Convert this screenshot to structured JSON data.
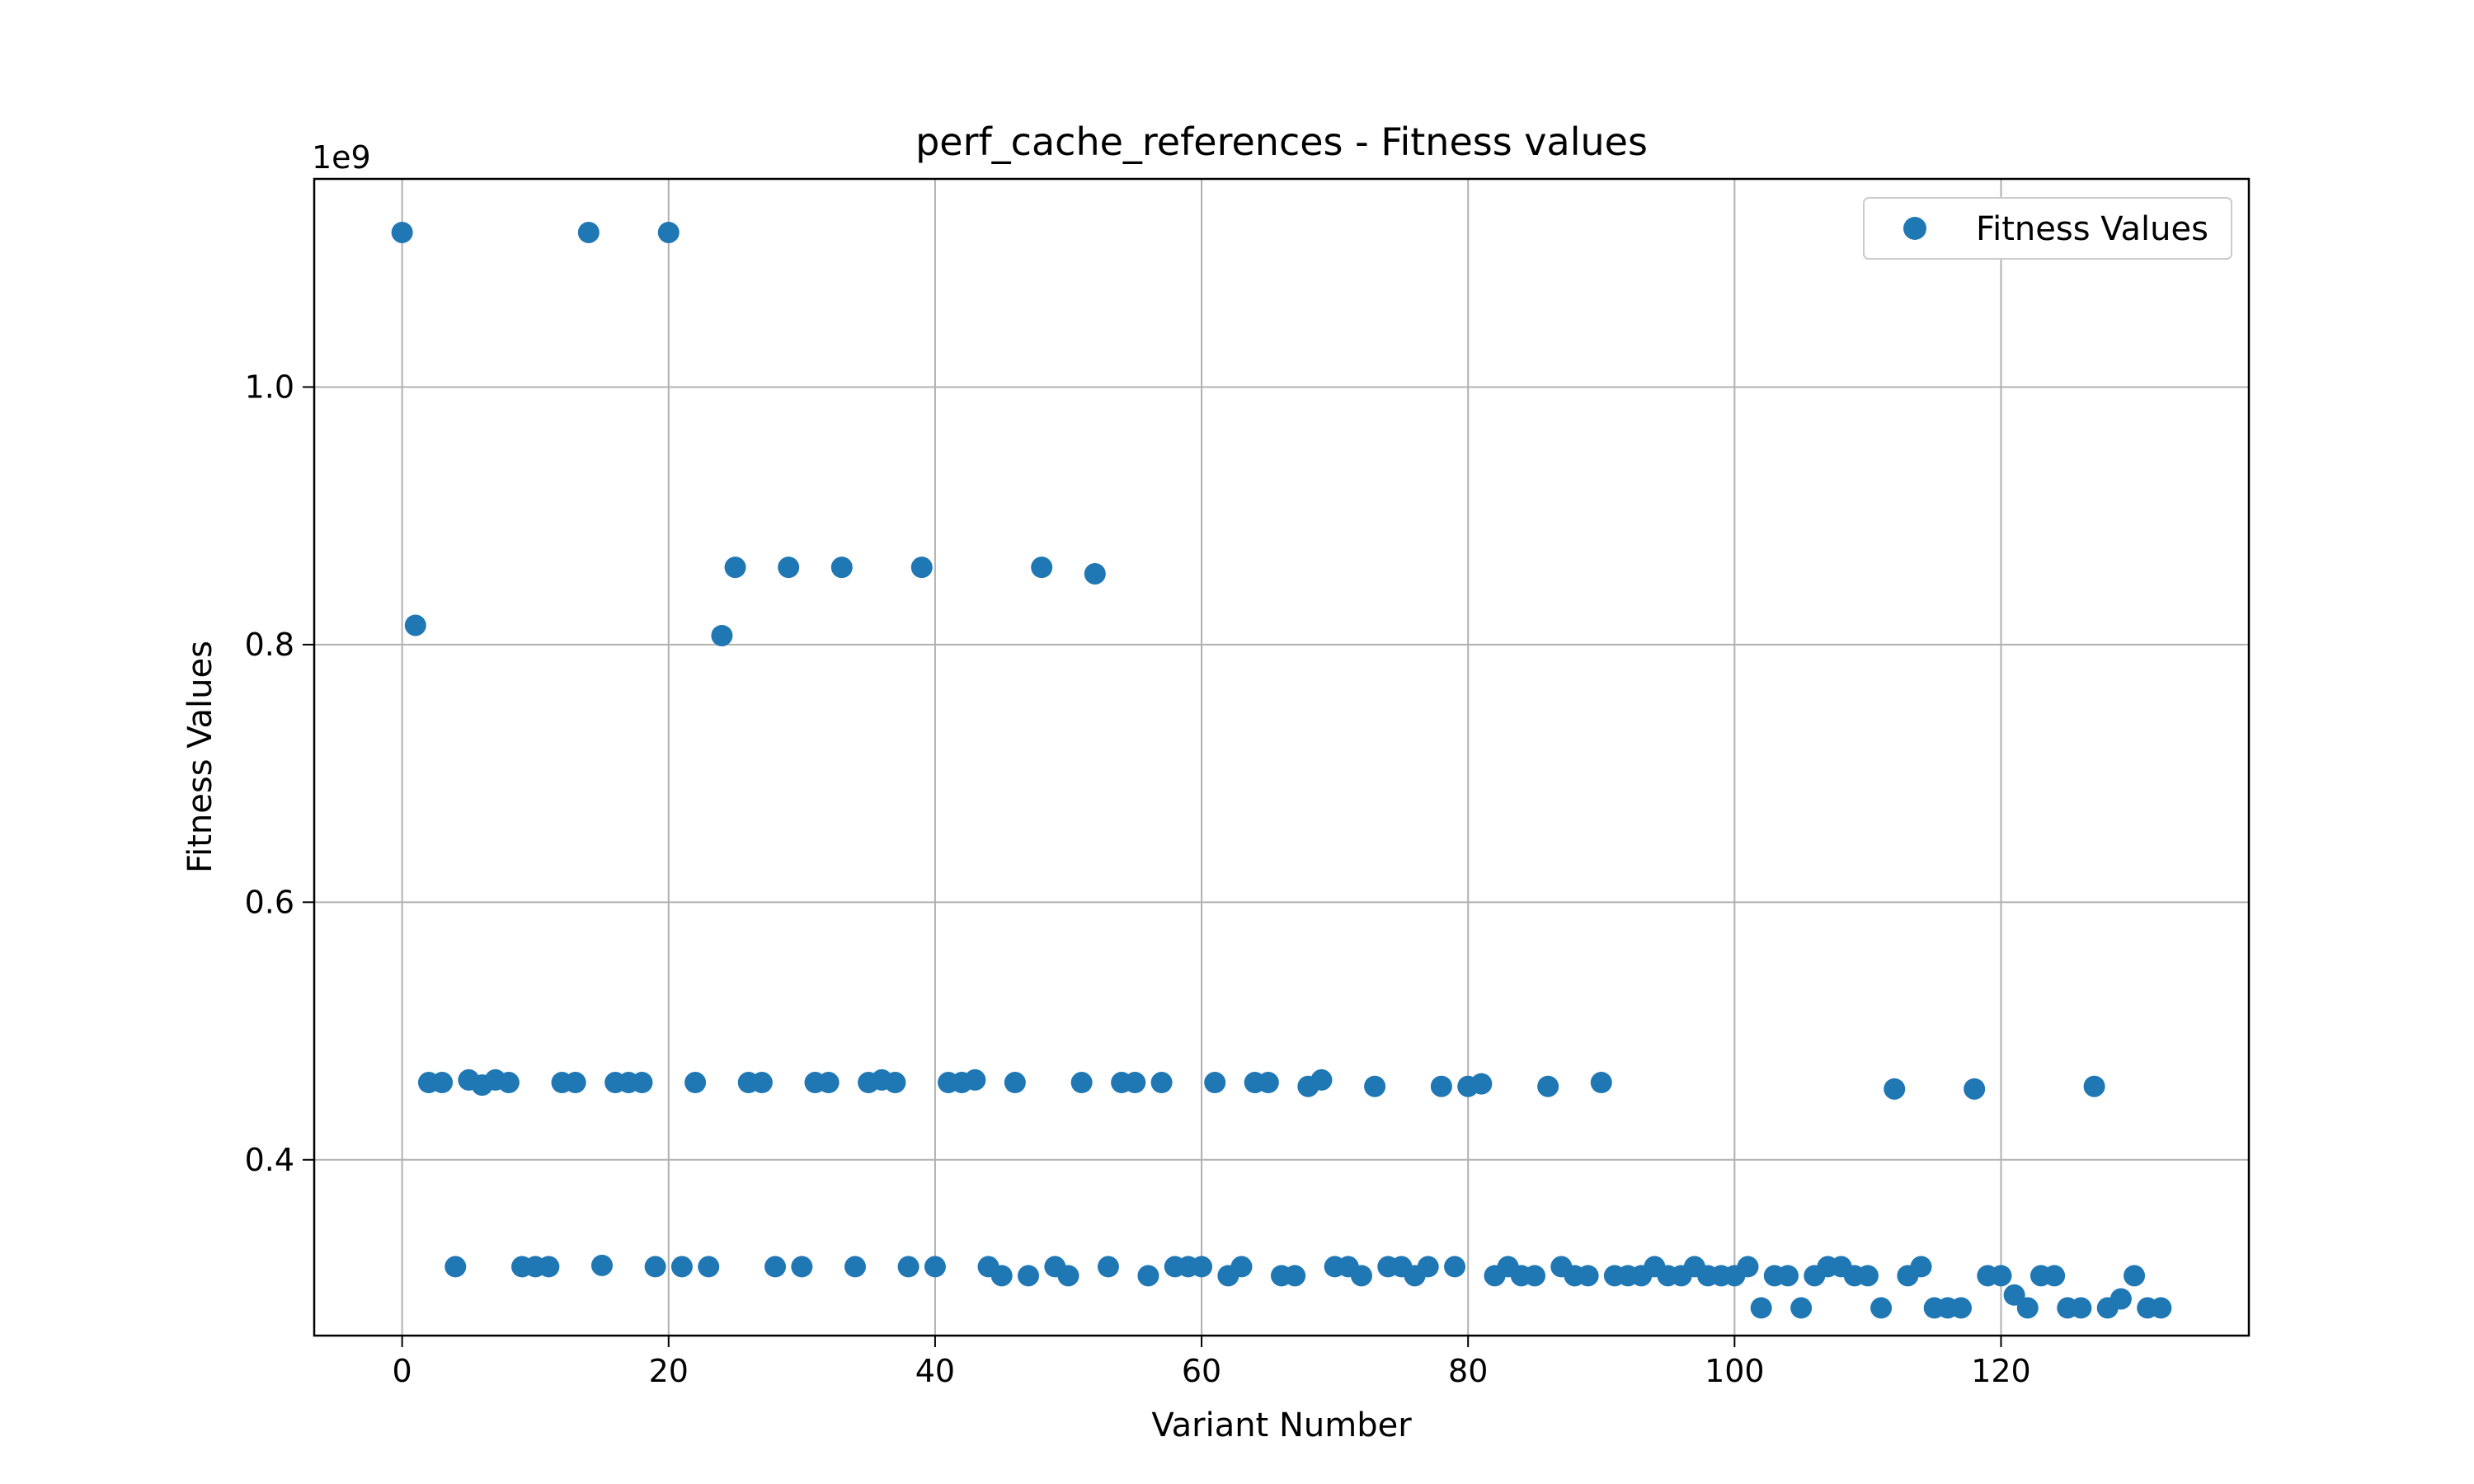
{
  "chart_data": {
    "type": "scatter",
    "title": "perf_cache_references - Fitness values",
    "xlabel": "Variant Number",
    "ylabel": "Fitness Values",
    "y_offset_label": "1e9",
    "xlim": [
      -6.6,
      138.6
    ],
    "ylim": [
      0.2635,
      1.1616
    ],
    "x_ticks": [
      0,
      20,
      40,
      60,
      80,
      100,
      120
    ],
    "x_tick_labels": [
      "0",
      "20",
      "40",
      "60",
      "80",
      "100",
      "120"
    ],
    "y_ticks": [
      0.4,
      0.6,
      0.8,
      1.0
    ],
    "y_tick_labels": [
      "0.4",
      "0.6",
      "0.8",
      "1.0"
    ],
    "grid": true,
    "legend_position": "upper-right",
    "color": "#1f77b4",
    "series": [
      {
        "name": "Fitness Values",
        "x": [
          0,
          1,
          2,
          3,
          4,
          5,
          6,
          7,
          8,
          9,
          10,
          11,
          12,
          13,
          14,
          15,
          16,
          17,
          18,
          19,
          20,
          21,
          22,
          23,
          24,
          25,
          26,
          27,
          28,
          29,
          30,
          31,
          32,
          33,
          34,
          35,
          36,
          37,
          38,
          39,
          40,
          41,
          42,
          43,
          44,
          45,
          46,
          47,
          48,
          49,
          50,
          51,
          52,
          53,
          54,
          55,
          56,
          57,
          58,
          59,
          60,
          61,
          62,
          63,
          64,
          65,
          66,
          67,
          68,
          69,
          70,
          71,
          72,
          73,
          74,
          75,
          76,
          77,
          78,
          79,
          80,
          81,
          82,
          83,
          84,
          85,
          86,
          87,
          88,
          89,
          90,
          91,
          92,
          93,
          94,
          95,
          96,
          97,
          98,
          99,
          100,
          101,
          102,
          103,
          104,
          105,
          106,
          107,
          108,
          109,
          110,
          111,
          112,
          113,
          114,
          115,
          116,
          117,
          118,
          119,
          120,
          121,
          122,
          123,
          124,
          125,
          126,
          127,
          128,
          129,
          130,
          131,
          132
        ],
        "y": [
          1.12,
          0.815,
          0.46,
          0.46,
          0.317,
          0.462,
          0.458,
          0.462,
          0.46,
          0.317,
          0.317,
          0.317,
          0.46,
          0.46,
          1.12,
          0.318,
          0.46,
          0.46,
          0.46,
          0.317,
          1.12,
          0.317,
          0.46,
          0.317,
          0.807,
          0.86,
          0.46,
          0.46,
          0.317,
          0.86,
          0.317,
          0.46,
          0.46,
          0.86,
          0.317,
          0.46,
          0.462,
          0.46,
          0.317,
          0.86,
          0.317,
          0.46,
          0.46,
          0.462,
          0.317,
          0.31,
          0.46,
          0.31,
          0.86,
          0.317,
          0.31,
          0.46,
          0.855,
          0.317,
          0.46,
          0.46,
          0.31,
          0.46,
          0.317,
          0.317,
          0.317,
          0.46,
          0.31,
          0.317,
          0.46,
          0.46,
          0.31,
          0.31,
          0.457,
          0.462,
          0.317,
          0.317,
          0.31,
          0.457,
          0.317,
          0.317,
          0.31,
          0.317,
          0.457,
          0.317,
          0.457,
          0.459,
          0.31,
          0.317,
          0.31,
          0.31,
          0.457,
          0.317,
          0.31,
          0.31,
          0.46,
          0.31,
          0.31,
          0.31,
          0.317,
          0.31,
          0.31,
          0.317,
          0.31,
          0.31,
          0.31,
          0.317,
          0.285,
          0.31,
          0.31,
          0.285,
          0.31,
          0.317,
          0.317,
          0.31,
          0.31,
          0.285,
          0.455,
          0.31,
          0.317,
          0.285,
          0.285,
          0.285,
          0.455,
          0.31,
          0.31,
          0.295,
          0.285,
          0.31,
          0.31,
          0.285,
          0.285,
          0.457,
          0.285,
          0.292,
          0.31,
          0.285,
          0.285
        ]
      }
    ]
  }
}
